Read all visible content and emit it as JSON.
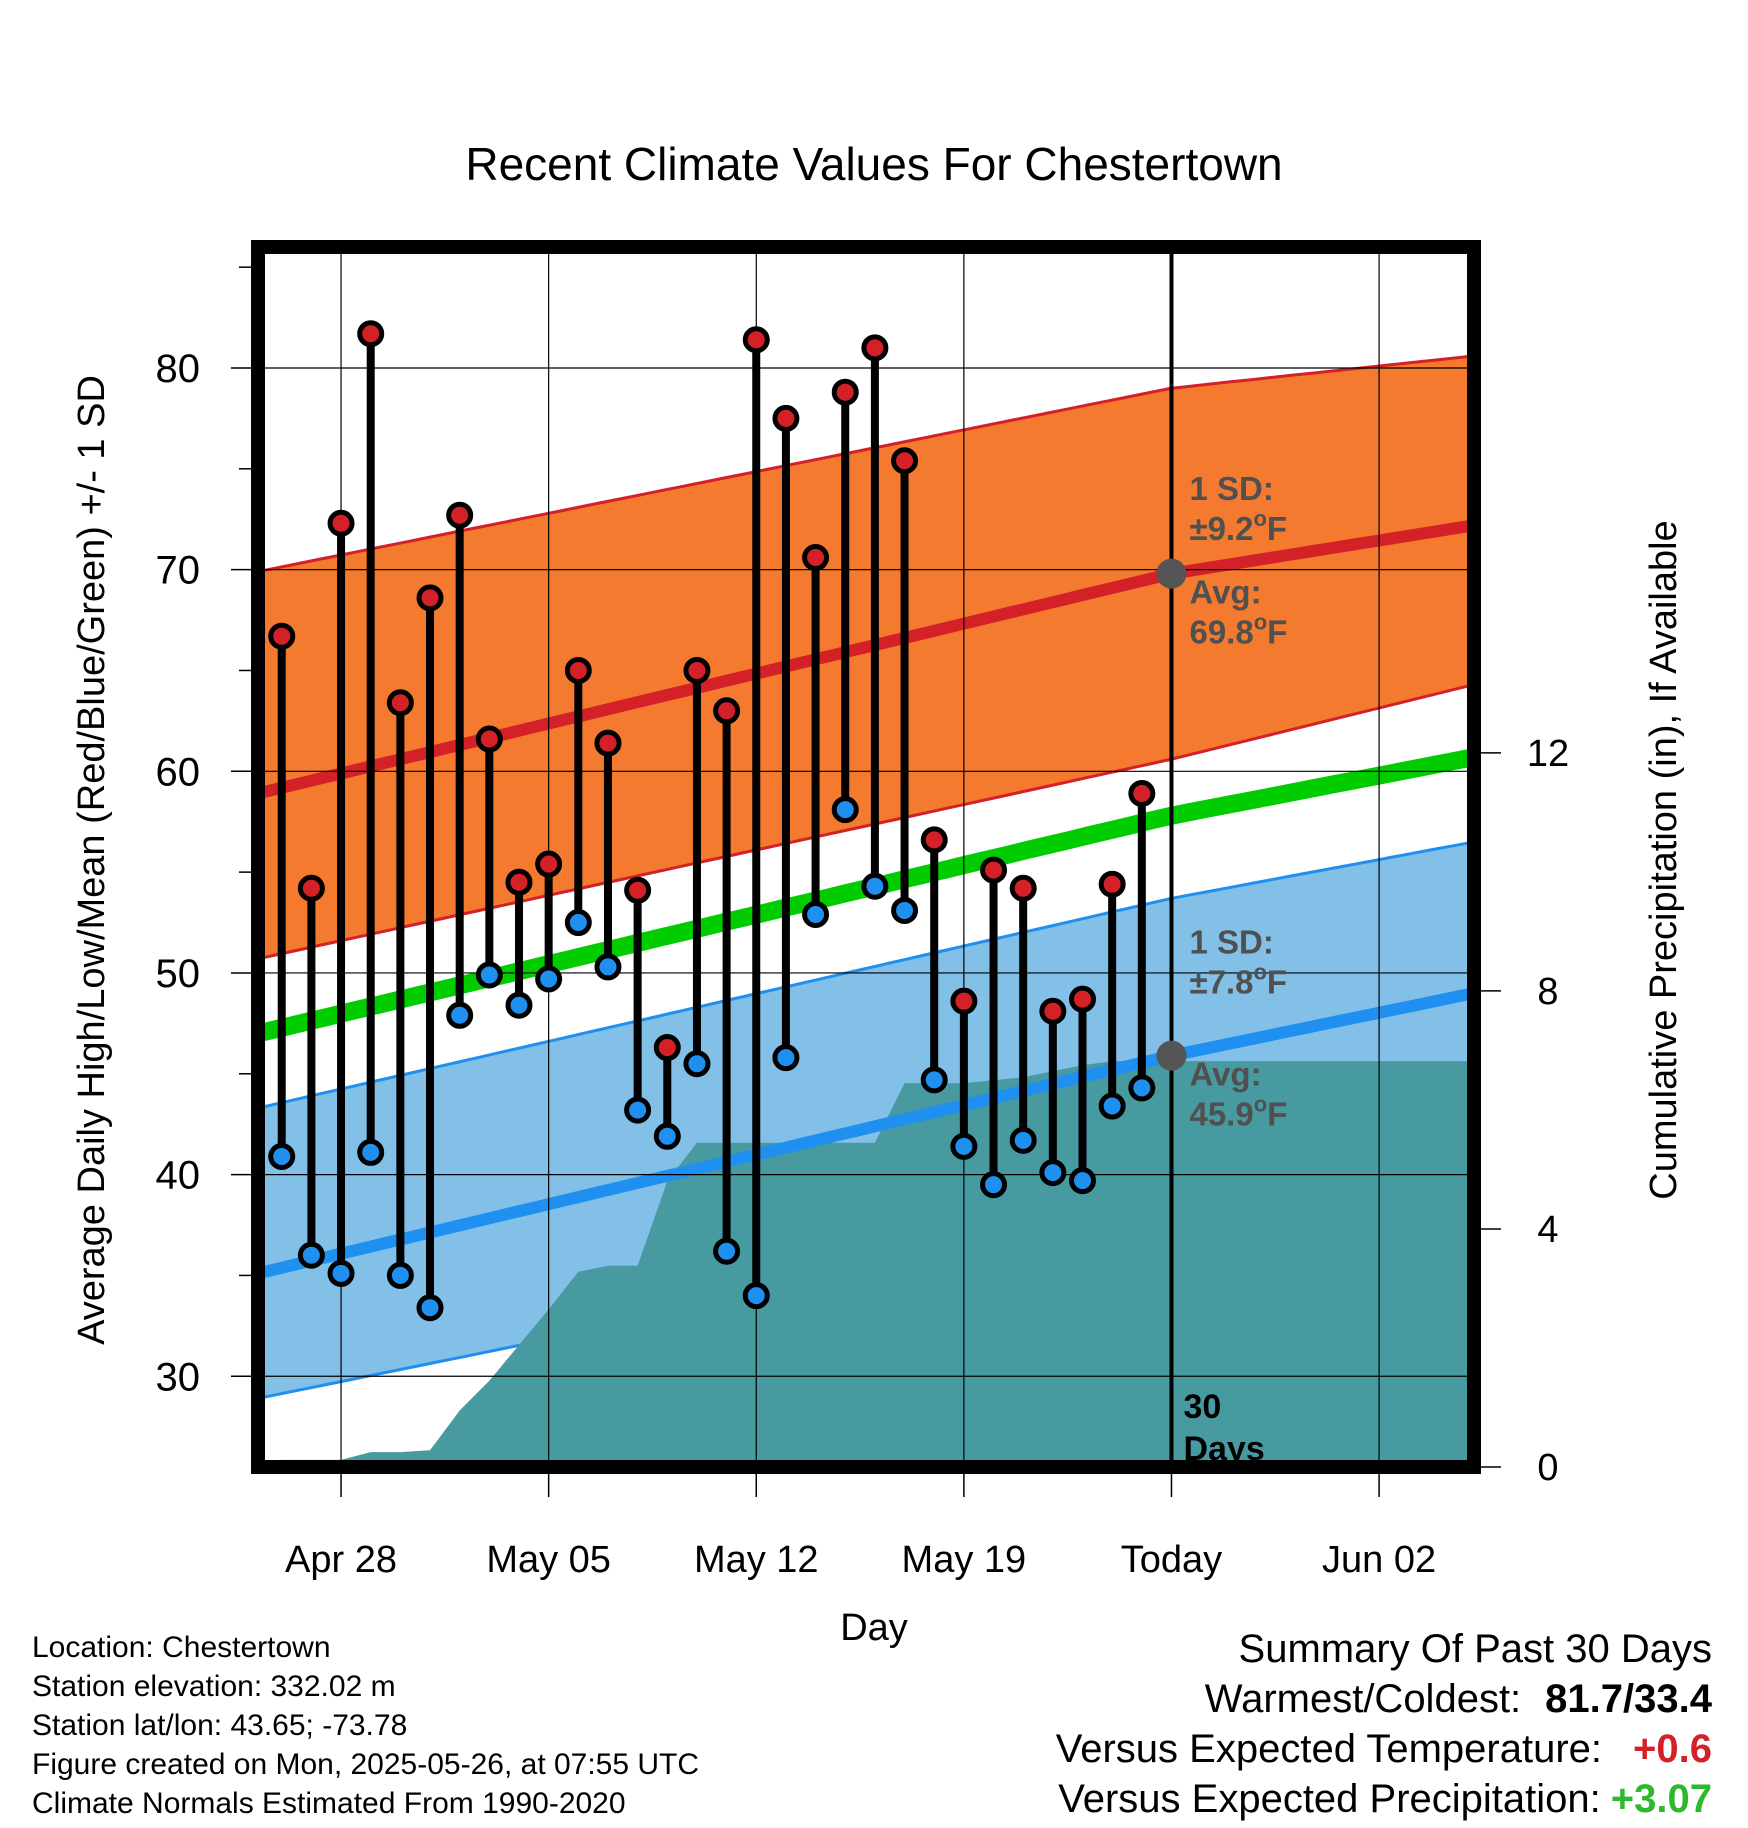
{
  "chart_data": {
    "type": "line",
    "title": "Recent Climate Values For Chestertown",
    "xlabel": "Day",
    "ylabel": "Average Daily High/Low/Mean (Red/Blue/Green) +/- 1 SD",
    "y2label": "Cumulative Precipitation (in), If Available",
    "x_tick_labels": [
      "Apr 28",
      "May 05",
      "May 12",
      "May 19",
      "Today",
      "Jun 02"
    ],
    "x_tick_days": [
      3,
      10,
      17,
      24,
      31,
      38
    ],
    "xlim_days": [
      0.2,
      41.2
    ],
    "today_day": 31,
    "ylim": [
      25.5,
      86
    ],
    "y_ticks": [
      30,
      40,
      50,
      60,
      70,
      80
    ],
    "y2lim": [
      0,
      20.5
    ],
    "y2_ticks": [
      0,
      4,
      8,
      12
    ],
    "observed_days": [
      1,
      2,
      3,
      4,
      5,
      6,
      7,
      8,
      9,
      10,
      11,
      12,
      13,
      14,
      15,
      16,
      17,
      18,
      19,
      20,
      21,
      22,
      23,
      24,
      25,
      26,
      27,
      28,
      29,
      30
    ],
    "daily_high": [
      66.7,
      54.2,
      72.3,
      81.7,
      63.4,
      68.6,
      72.7,
      61.6,
      54.5,
      55.4,
      65.0,
      61.4,
      54.1,
      46.3,
      65.0,
      63.0,
      81.4,
      77.5,
      70.6,
      78.8,
      81.0,
      75.4,
      56.6,
      48.6,
      55.1,
      54.2,
      48.1,
      48.7,
      54.4,
      58.9
    ],
    "daily_low": [
      40.9,
      36.0,
      35.1,
      41.1,
      35.0,
      33.4,
      47.9,
      49.9,
      48.4,
      49.7,
      52.5,
      50.3,
      43.2,
      41.9,
      45.5,
      36.2,
      34.0,
      45.8,
      52.9,
      58.1,
      54.3,
      53.1,
      44.7,
      41.4,
      39.5,
      41.7,
      40.1,
      39.7,
      43.4,
      44.3
    ],
    "normals": {
      "high_mean": {
        "start": 58.9,
        "today": 69.8,
        "end": 72.2
      },
      "high_upper": {
        "start": 69.9,
        "today": 79.0,
        "end": 80.6
      },
      "high_lower": {
        "start": 50.7,
        "today": 60.6,
        "end": 64.3
      },
      "low_mean": {
        "start": 35.1,
        "today": 45.9,
        "end": 49.0
      },
      "low_upper": {
        "start": 43.3,
        "today": 53.7,
        "end": 56.5
      },
      "low_lower": {
        "start": 28.9,
        "today": 38.1,
        "end": 42.8
      },
      "daily_mean": {
        "start": 47.0,
        "today": 57.8,
        "end": 60.7
      }
    },
    "precip_cumulative": {
      "days": [
        0.2,
        1.0,
        2.0,
        3.0,
        4.0,
        5.0,
        6.0,
        7.0,
        8.0,
        9.0,
        10.0,
        11.0,
        12.0,
        13.0,
        14.0,
        15.0,
        16.0,
        17.0,
        18.0,
        19.0,
        20.0,
        21.0,
        22.0,
        23.0,
        24.0,
        25.0,
        26.0,
        27.0,
        28.0,
        29.0,
        30.0,
        31.0,
        41.2
      ],
      "values": [
        0.05,
        0.12,
        0.12,
        0.12,
        0.25,
        0.25,
        0.28,
        0.95,
        1.45,
        2.05,
        2.65,
        3.28,
        3.38,
        3.38,
        4.8,
        5.45,
        5.45,
        5.45,
        5.45,
        5.45,
        5.45,
        5.45,
        6.45,
        6.45,
        6.45,
        6.5,
        6.55,
        6.65,
        6.75,
        6.82,
        6.82,
        6.82,
        6.82
      ]
    },
    "annotations": {
      "high_sd_label": "1 SD:",
      "high_sd_value": "±9.2",
      "high_avg_label": "Avg:",
      "high_avg_value": "69.8",
      "low_sd_label": "1 SD:",
      "low_sd_value": "±7.8",
      "low_avg_label": "Avg:",
      "low_avg_value": "45.9",
      "unit_sup": "o",
      "unit_letter": "F",
      "days_number": "30",
      "days_word": "Days"
    },
    "colors": {
      "high_band": "#f47a30",
      "high_line": "#d42027",
      "low_band": "#83c0e7",
      "low_line": "#1f8ff0",
      "mean_line": "#00cc00",
      "precip": "#489aa1",
      "high_dot": "#d42027",
      "low_dot": "#1f8ff0",
      "annotation_text": "#505050"
    }
  },
  "footer": {
    "location": "Location: Chestertown",
    "elevation": "Station elevation: 332.02 m",
    "latlon": "Station lat/lon: 43.65; -73.78",
    "created": "Figure created on Mon, 2025-05-26, at 07:55 UTC",
    "normals": "Climate Normals Estimated From 1990-2020"
  },
  "summary": {
    "title": "Summary Of Past 30 Days",
    "warmest_label": "Warmest/Coldest:",
    "warmest_value": "81.7/33.4",
    "temp_label": "Versus Expected Temperature:",
    "temp_value": "+0.6",
    "temp_color": "#d42027",
    "precip_label": "Versus Expected Precipitation:",
    "precip_value": "+3.07",
    "precip_color": "#2cb92c"
  }
}
